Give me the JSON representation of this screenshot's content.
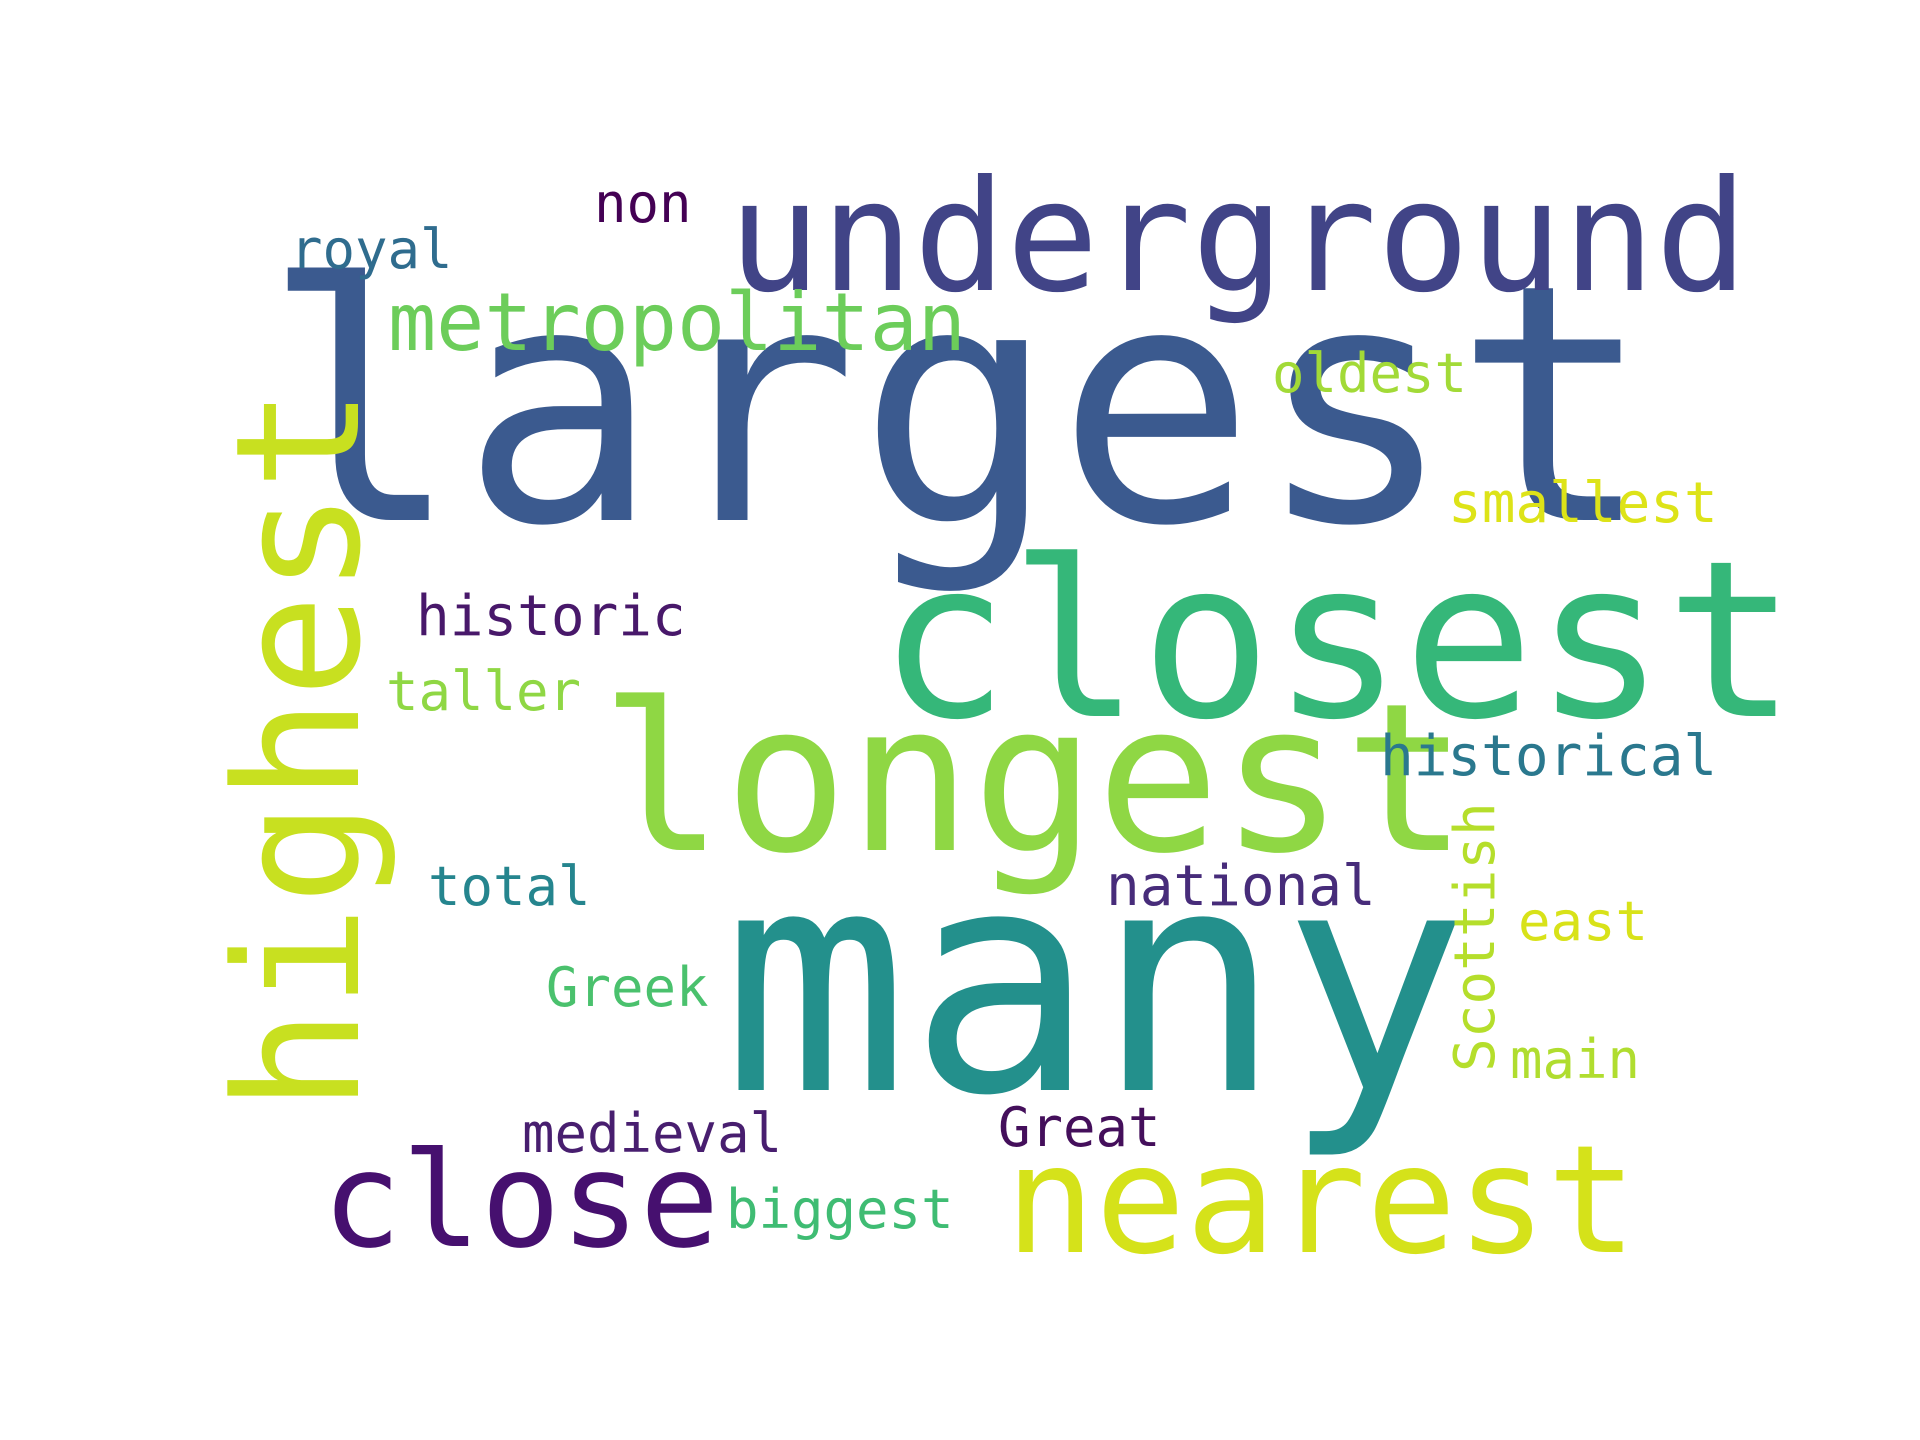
{
  "wordcloud": {
    "colormap": "viridis",
    "background": "#ffffff",
    "words": [
      {
        "text": "largest",
        "weight": 1.0,
        "color": "#3b5a8f",
        "orientation": "horizontal"
      },
      {
        "text": "many",
        "weight": 0.95,
        "color": "#23908c",
        "orientation": "horizontal"
      },
      {
        "text": "closest",
        "weight": 0.78,
        "color": "#35b779",
        "orientation": "horizontal"
      },
      {
        "text": "longest",
        "weight": 0.75,
        "color": "#8fd744",
        "orientation": "horizontal"
      },
      {
        "text": "highest",
        "weight": 0.66,
        "color": "#c8e020",
        "orientation": "vertical"
      },
      {
        "text": "underground",
        "weight": 0.62,
        "color": "#414487",
        "orientation": "horizontal"
      },
      {
        "text": "nearest",
        "weight": 0.58,
        "color": "#d5e21a",
        "orientation": "horizontal"
      },
      {
        "text": "close",
        "weight": 0.56,
        "color": "#46106f",
        "orientation": "horizontal"
      },
      {
        "text": "metropolitan",
        "weight": 0.34,
        "color": "#6ccd5a",
        "orientation": "horizontal"
      },
      {
        "text": "Scottish",
        "weight": 0.28,
        "color": "#b5de2b",
        "orientation": "vertical"
      },
      {
        "text": "historical",
        "weight": 0.27,
        "color": "#2a788e",
        "orientation": "horizontal"
      },
      {
        "text": "national",
        "weight": 0.27,
        "color": "#472c7a",
        "orientation": "horizontal"
      },
      {
        "text": "historic",
        "weight": 0.27,
        "color": "#48186a",
        "orientation": "horizontal"
      },
      {
        "text": "smallest",
        "weight": 0.26,
        "color": "#dde318",
        "orientation": "horizontal"
      },
      {
        "text": "medieval",
        "weight": 0.26,
        "color": "#481e6f",
        "orientation": "horizontal"
      },
      {
        "text": "Great",
        "weight": 0.26,
        "color": "#440f5b",
        "orientation": "horizontal"
      },
      {
        "text": "biggest",
        "weight": 0.26,
        "color": "#3fbc73",
        "orientation": "horizontal"
      },
      {
        "text": "total",
        "weight": 0.26,
        "color": "#25858e",
        "orientation": "horizontal"
      },
      {
        "text": "Greek",
        "weight": 0.26,
        "color": "#4ac16d",
        "orientation": "horizontal"
      },
      {
        "text": "taller",
        "weight": 0.26,
        "color": "#8fd744",
        "orientation": "horizontal"
      },
      {
        "text": "oldest",
        "weight": 0.26,
        "color": "#a2da37",
        "orientation": "horizontal"
      },
      {
        "text": "royal",
        "weight": 0.26,
        "color": "#2f6c8e",
        "orientation": "horizontal"
      },
      {
        "text": "east",
        "weight": 0.25,
        "color": "#d8e219",
        "orientation": "horizontal"
      },
      {
        "text": "main",
        "weight": 0.25,
        "color": "#b0dd2f",
        "orientation": "horizontal"
      },
      {
        "text": "non",
        "weight": 0.24,
        "color": "#440154",
        "orientation": "horizontal"
      }
    ]
  }
}
